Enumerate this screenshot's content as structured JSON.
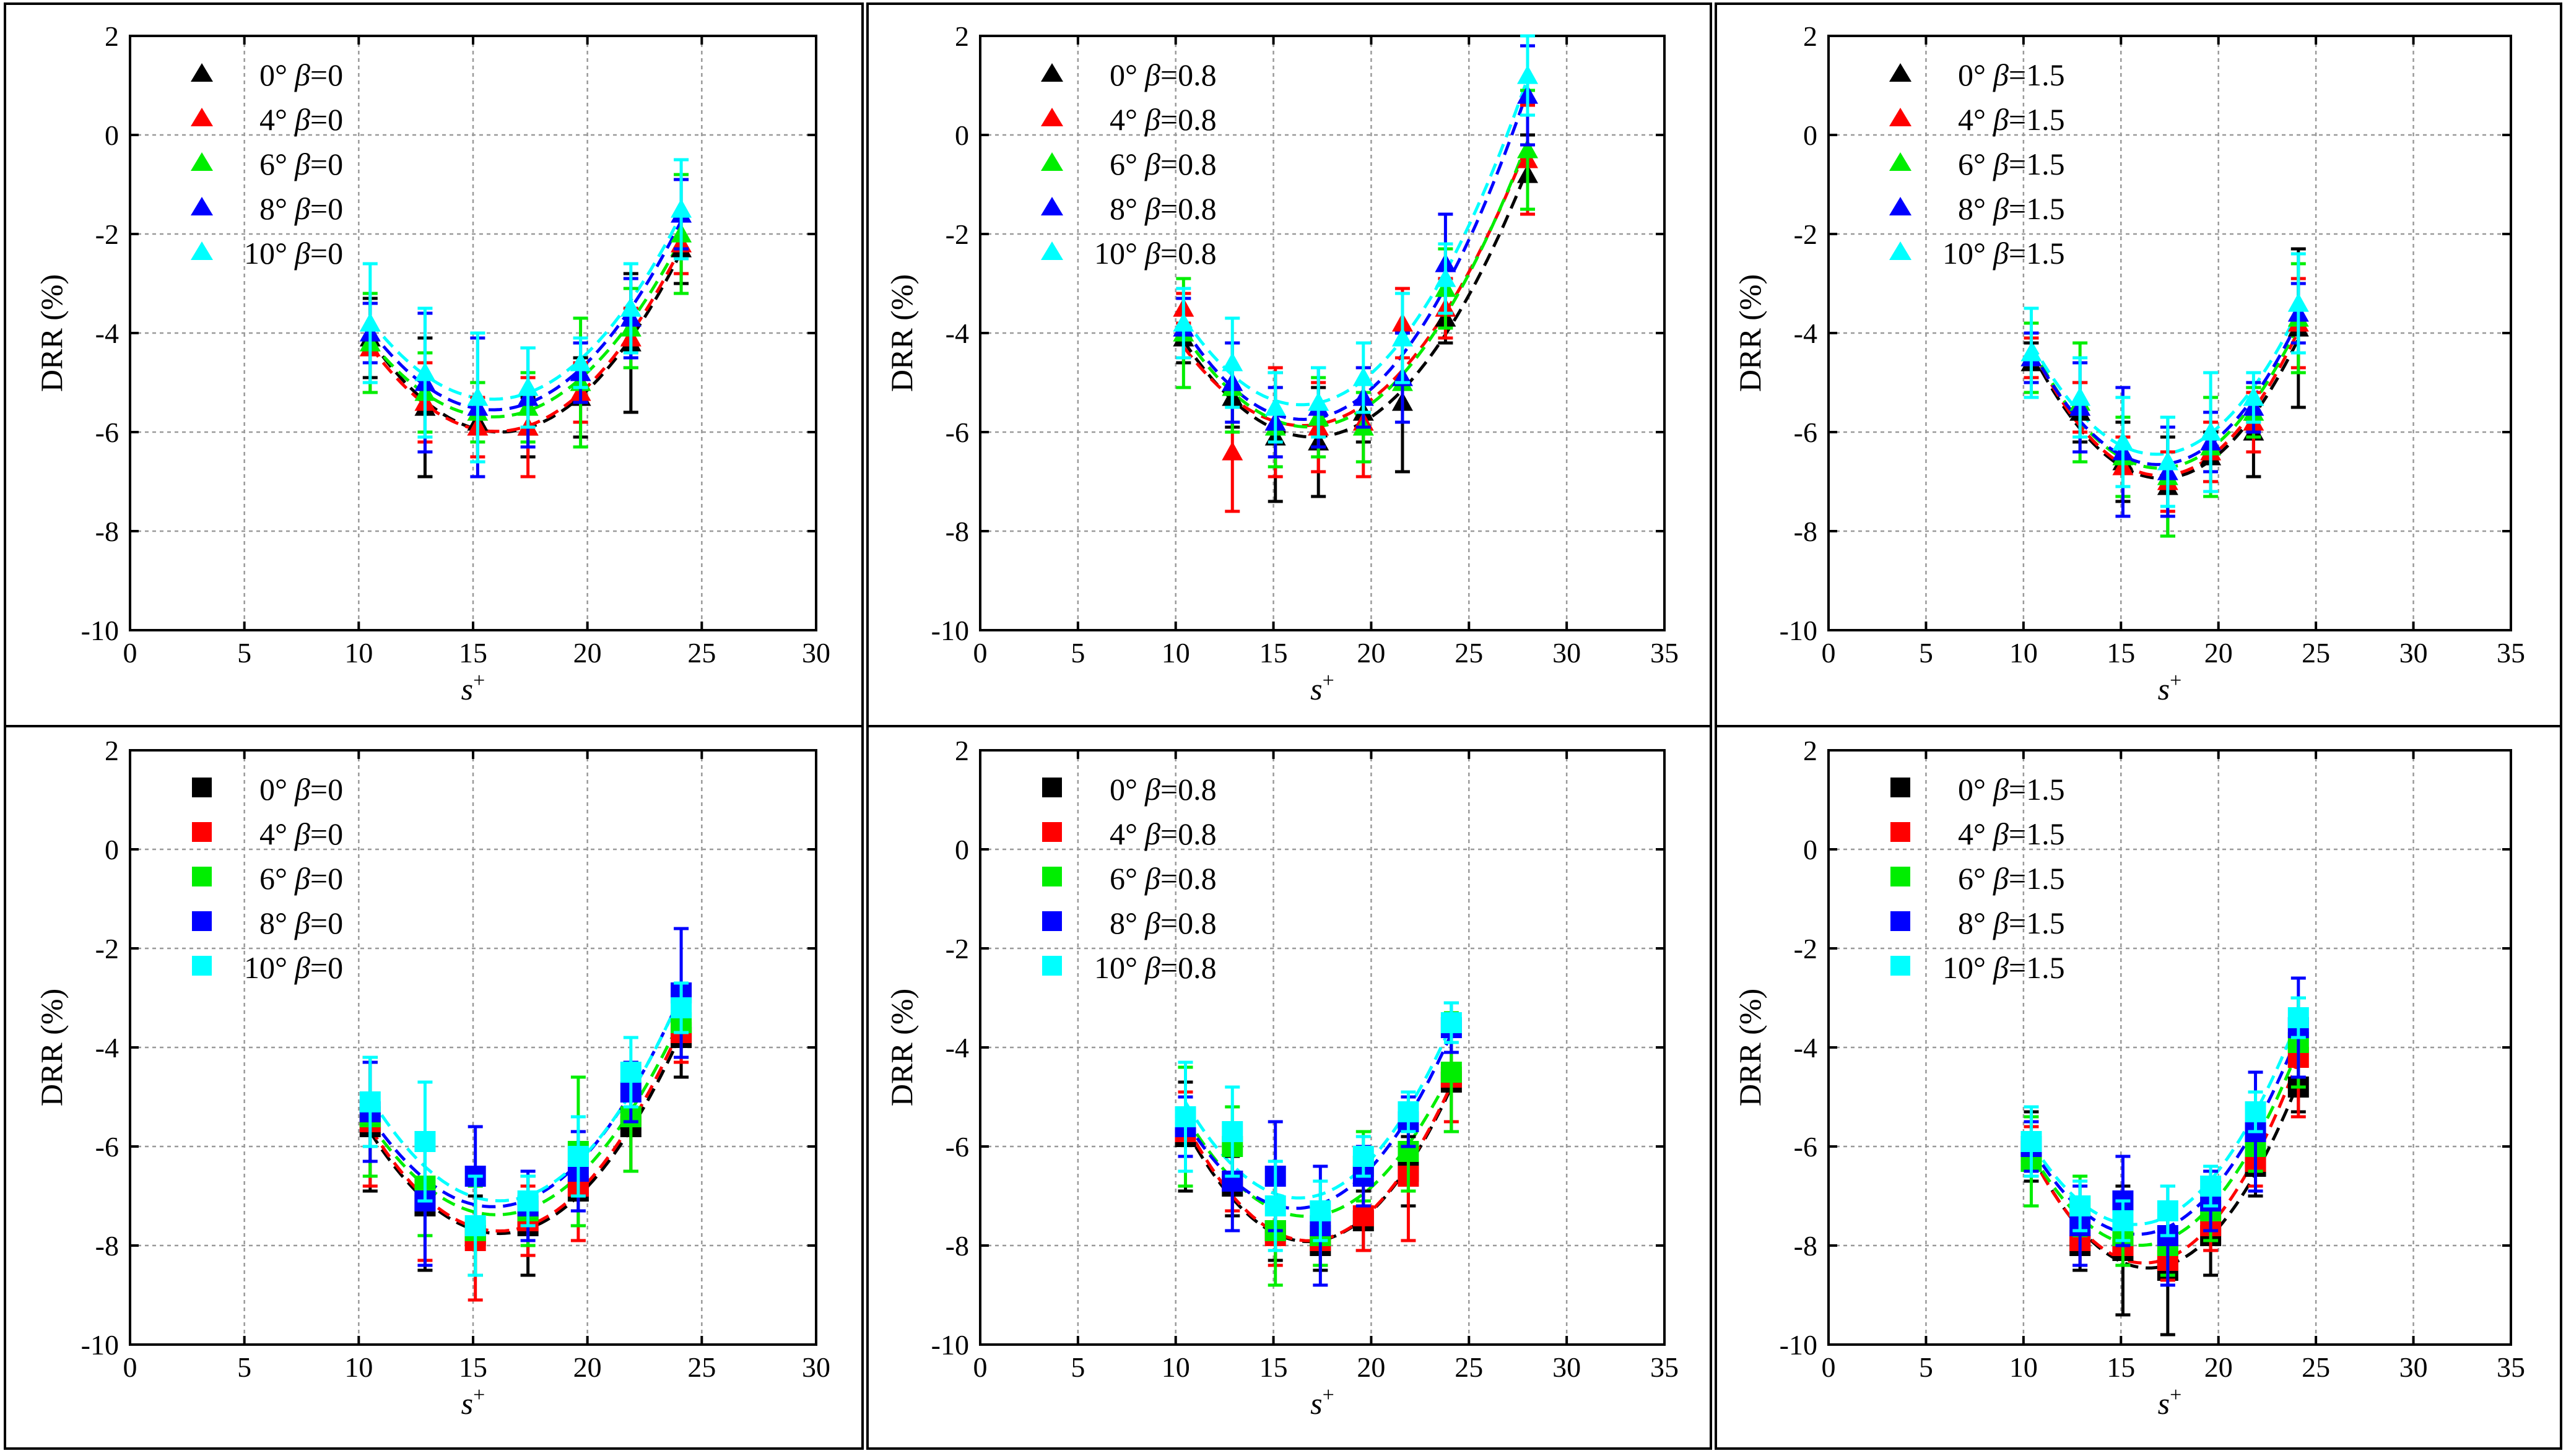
{
  "figure": {
    "colors": {
      "0": "#000000",
      "4": "#ff0000",
      "6": "#00ee00",
      "8": "#0000ff",
      "10": "#00ffff"
    },
    "legend_angles": [
      "0°",
      "4°",
      "6°",
      "8°",
      "10°"
    ],
    "legend_angle_values": [
      "0",
      "4",
      "6",
      "8",
      "10"
    ]
  },
  "chart_data": [
    {
      "id": "top-left",
      "type": "scatter",
      "marker": "triangle",
      "beta": "0",
      "xlabel": "s",
      "xlabel_sup": "+",
      "ylabel": "DRR (%)",
      "xlim": [
        0,
        30
      ],
      "xticks": [
        0,
        5,
        10,
        15,
        20,
        25,
        30
      ],
      "ylim": [
        -10,
        2
      ],
      "yticks": [
        -10,
        -8,
        -6,
        -4,
        -2,
        0,
        2
      ],
      "x": [
        10.5,
        12.9,
        15.2,
        17.4,
        19.7,
        21.9,
        24.1
      ],
      "series": [
        {
          "angle": "0",
          "name": "0° β=0",
          "values": [
            -4.1,
            -5.5,
            -5.8,
            -5.9,
            -5.3,
            -4.2,
            -2.3
          ],
          "errors": [
            0.8,
            1.4,
            0.8,
            0.6,
            0.8,
            1.4,
            0.7
          ]
        },
        {
          "angle": "4",
          "name": "4° β=0",
          "values": [
            -4.3,
            -5.4,
            -5.9,
            -5.9,
            -5.2,
            -4.1,
            -2.2
          ],
          "errors": [
            0.9,
            0.8,
            0.6,
            1.0,
            0.6,
            0.6,
            0.6
          ]
        },
        {
          "angle": "6",
          "name": "6° β=0",
          "values": [
            -4.2,
            -5.2,
            -5.6,
            -5.5,
            -5.0,
            -3.9,
            -2.0
          ],
          "errors": [
            1.0,
            0.8,
            0.6,
            0.7,
            1.3,
            0.8,
            1.2
          ]
        },
        {
          "angle": "8",
          "name": "8° β=0",
          "values": [
            -4.0,
            -5.0,
            -5.5,
            -5.3,
            -4.8,
            -3.7,
            -1.6
          ],
          "errors": [
            0.6,
            1.4,
            1.4,
            1.0,
            0.6,
            0.8,
            0.7
          ]
        },
        {
          "angle": "10",
          "name": "10° β=0",
          "values": [
            -3.8,
            -4.8,
            -5.3,
            -5.1,
            -4.6,
            -3.5,
            -1.5
          ],
          "errors": [
            1.2,
            1.3,
            1.3,
            0.8,
            0.5,
            0.9,
            1.0
          ]
        }
      ]
    },
    {
      "id": "top-middle",
      "type": "scatter",
      "marker": "triangle",
      "beta": "0.8",
      "xlabel": "s",
      "xlabel_sup": "+",
      "ylabel": "DRR (%)",
      "xlim": [
        0,
        35
      ],
      "xticks": [
        0,
        5,
        10,
        15,
        20,
        25,
        30,
        35
      ],
      "ylim": [
        -10,
        2
      ],
      "yticks": [
        -10,
        -8,
        -6,
        -4,
        -2,
        0,
        2
      ],
      "x": [
        10.4,
        12.9,
        15.1,
        17.3,
        19.6,
        21.6,
        23.8,
        28.0
      ],
      "series": [
        {
          "angle": "0",
          "name": "0° β=0.8",
          "values": [
            -4.1,
            -5.3,
            -6.1,
            -6.2,
            -5.6,
            -5.4,
            -3.7,
            -0.8
          ],
          "errors": [
            0.5,
            0.6,
            1.3,
            1.1,
            0.6,
            1.4,
            0.5,
            0.8
          ]
        },
        {
          "angle": "4",
          "name": "4° β=0.8",
          "values": [
            -3.5,
            -6.4,
            -5.8,
            -5.9,
            -5.8,
            -3.8,
            -3.5,
            -0.5
          ],
          "errors": [
            0.3,
            1.2,
            1.1,
            0.9,
            1.1,
            0.7,
            0.6,
            1.1
          ]
        },
        {
          "angle": "6",
          "name": "6° β=0.8",
          "values": [
            -4.0,
            -5.1,
            -5.9,
            -5.7,
            -5.9,
            -5.0,
            -3.1,
            -0.3
          ],
          "errors": [
            1.1,
            0.9,
            0.8,
            0.8,
            0.7,
            0.8,
            0.8,
            1.2
          ]
        },
        {
          "angle": "8",
          "name": "8° β=0.8",
          "values": [
            -3.9,
            -5.0,
            -5.8,
            -5.5,
            -5.3,
            -4.9,
            -2.6,
            0.8
          ],
          "errors": [
            0.6,
            0.8,
            0.7,
            0.8,
            0.6,
            0.9,
            1.0,
            1.0
          ]
        },
        {
          "angle": "10",
          "name": "10° β=0.8",
          "values": [
            -3.8,
            -4.6,
            -5.5,
            -5.4,
            -4.9,
            -4.1,
            -2.9,
            1.2
          ],
          "errors": [
            0.7,
            0.9,
            0.7,
            0.7,
            0.7,
            0.9,
            0.7,
            0.8
          ]
        }
      ]
    },
    {
      "id": "top-right",
      "type": "scatter",
      "marker": "triangle",
      "beta": "1.5",
      "xlabel": "s",
      "xlabel_sup": "+",
      "ylabel": "DRR (%)",
      "xlim": [
        0,
        35
      ],
      "xticks": [
        0,
        5,
        10,
        15,
        20,
        25,
        30,
        35
      ],
      "ylim": [
        -10,
        2
      ],
      "yticks": [
        -10,
        -8,
        -6,
        -4,
        -2,
        0,
        2
      ],
      "x": [
        10.4,
        12.9,
        15.1,
        17.4,
        19.6,
        21.8,
        24.1
      ],
      "series": [
        {
          "angle": "0",
          "name": "0° β=1.5",
          "values": [
            -4.6,
            -5.6,
            -6.6,
            -7.1,
            -6.5,
            -6.0,
            -3.9
          ],
          "errors": [
            0.4,
            0.6,
            0.8,
            1.0,
            0.5,
            0.9,
            1.6
          ]
        },
        {
          "angle": "4",
          "name": "4° β=1.5",
          "values": [
            -4.5,
            -5.5,
            -6.7,
            -7.0,
            -6.4,
            -5.8,
            -3.8
          ],
          "errors": [
            0.4,
            0.5,
            0.6,
            0.6,
            0.6,
            0.6,
            0.9
          ]
        },
        {
          "angle": "6",
          "name": "6° β=1.5",
          "values": [
            -4.5,
            -5.4,
            -6.5,
            -6.9,
            -6.3,
            -5.6,
            -3.7
          ],
          "errors": [
            0.7,
            1.2,
            0.8,
            1.2,
            1.0,
            0.5,
            1.1
          ]
        },
        {
          "angle": "8",
          "name": "8° β=1.5",
          "values": [
            -4.5,
            -5.5,
            -6.4,
            -6.8,
            -6.2,
            -5.5,
            -3.6
          ],
          "errors": [
            0.5,
            0.9,
            1.3,
            0.9,
            0.6,
            0.5,
            0.6
          ]
        },
        {
          "angle": "10",
          "name": "10° β=1.5",
          "values": [
            -4.4,
            -5.3,
            -6.2,
            -6.6,
            -6.0,
            -5.3,
            -3.4
          ],
          "errors": [
            0.9,
            0.8,
            0.9,
            0.9,
            1.2,
            0.5,
            1.0
          ]
        }
      ]
    },
    {
      "id": "bottom-left",
      "type": "scatter",
      "marker": "square",
      "beta": "0",
      "xlabel": "s",
      "xlabel_sup": "+",
      "ylabel": "DRR (%)",
      "xlim": [
        0,
        30
      ],
      "xticks": [
        0,
        5,
        10,
        15,
        20,
        25,
        30
      ],
      "ylim": [
        -10,
        2
      ],
      "yticks": [
        -10,
        -8,
        -6,
        -4,
        -2,
        0,
        2
      ],
      "x": [
        10.5,
        12.9,
        15.1,
        17.4,
        19.6,
        21.9,
        24.1
      ],
      "series": [
        {
          "angle": "0",
          "name": "0° β=0",
          "values": [
            -5.6,
            -7.2,
            -7.8,
            -7.6,
            -6.9,
            -5.6,
            -3.8
          ],
          "errors": [
            1.3,
            1.3,
            0.8,
            1.0,
            0.7,
            0.9,
            0.8
          ]
        },
        {
          "angle": "4",
          "name": "4° β=0",
          "values": [
            -5.5,
            -7.1,
            -7.9,
            -7.5,
            -6.8,
            -5.4,
            -3.7
          ],
          "errors": [
            1.3,
            1.2,
            1.2,
            0.7,
            1.1,
            1.1,
            0.6
          ]
        },
        {
          "angle": "6",
          "name": "6° β=0",
          "values": [
            -5.4,
            -6.8,
            -7.7,
            -7.3,
            -6.1,
            -5.4,
            -3.5
          ],
          "errors": [
            1.2,
            1.0,
            0.9,
            0.7,
            1.5,
            1.1,
            0.7
          ]
        },
        {
          "angle": "8",
          "name": "8° β=0",
          "values": [
            -5.3,
            -7.1,
            -6.6,
            -7.2,
            -6.5,
            -4.9,
            -2.9
          ],
          "errors": [
            1.0,
            1.3,
            1.0,
            0.7,
            0.8,
            0.6,
            1.3
          ]
        },
        {
          "angle": "10",
          "name": "10° β=0",
          "values": [
            -5.1,
            -5.9,
            -7.6,
            -7.1,
            -6.2,
            -4.5,
            -3.2
          ],
          "errors": [
            0.9,
            1.2,
            1.0,
            0.5,
            0.8,
            0.7,
            0.5
          ]
        }
      ]
    },
    {
      "id": "bottom-middle",
      "type": "scatter",
      "marker": "square",
      "beta": "0.8",
      "xlabel": "s",
      "xlabel_sup": "+",
      "ylabel": "DRR (%)",
      "xlim": [
        0,
        35
      ],
      "xticks": [
        0,
        5,
        10,
        15,
        20,
        25,
        30,
        35
      ],
      "ylim": [
        -10,
        2
      ],
      "yticks": [
        -10,
        -8,
        -6,
        -4,
        -2,
        0,
        2
      ],
      "x": [
        10.5,
        12.9,
        15.1,
        17.4,
        19.6,
        21.9,
        24.1
      ],
      "series": [
        {
          "angle": "0",
          "name": "0° β=0.8",
          "values": [
            -5.8,
            -6.8,
            -7.7,
            -8.0,
            -7.5,
            -6.5,
            -4.7
          ],
          "errors": [
            1.1,
            0.6,
            0.6,
            0.5,
            0.6,
            0.7,
            1.0
          ]
        },
        {
          "angle": "4",
          "name": "4° β=0.8",
          "values": [
            -5.7,
            -6.7,
            -7.8,
            -7.9,
            -7.4,
            -6.6,
            -4.6
          ],
          "errors": [
            0.8,
            0.6,
            0.6,
            0.5,
            0.7,
            1.3,
            0.9
          ]
        },
        {
          "angle": "6",
          "name": "6° β=0.8",
          "values": [
            -5.6,
            -6.0,
            -7.7,
            -7.8,
            -6.4,
            -6.1,
            -4.5
          ],
          "errors": [
            1.2,
            0.8,
            1.1,
            0.6,
            0.7,
            0.8,
            1.2
          ]
        },
        {
          "angle": "8",
          "name": "8° β=0.8",
          "values": [
            -5.6,
            -6.7,
            -6.6,
            -7.6,
            -6.6,
            -5.5,
            -3.6
          ],
          "errors": [
            0.6,
            1.0,
            1.1,
            1.2,
            0.6,
            0.5,
            0.5
          ]
        },
        {
          "angle": "10",
          "name": "10° β=0.8",
          "values": [
            -5.4,
            -5.7,
            -7.2,
            -7.3,
            -6.2,
            -5.3,
            -3.5
          ],
          "errors": [
            1.1,
            0.9,
            0.9,
            0.6,
            0.4,
            0.4,
            0.4
          ]
        }
      ]
    },
    {
      "id": "bottom-right",
      "type": "scatter",
      "marker": "square",
      "beta": "1.5",
      "xlabel": "s",
      "xlabel_sup": "+",
      "ylabel": "DRR (%)",
      "xlim": [
        0,
        35
      ],
      "xticks": [
        0,
        5,
        10,
        15,
        20,
        25,
        30,
        35
      ],
      "ylim": [
        -10,
        2
      ],
      "yticks": [
        -10,
        -8,
        -6,
        -4,
        -2,
        0,
        2
      ],
      "x": [
        10.4,
        12.9,
        15.1,
        17.4,
        19.6,
        21.9,
        24.1
      ],
      "series": [
        {
          "angle": "0",
          "name": "0° β=1.5",
          "values": [
            -6.0,
            -8.0,
            -8.1,
            -8.5,
            -7.8,
            -6.4,
            -4.8
          ],
          "errors": [
            0.7,
            0.5,
            1.3,
            1.3,
            0.8,
            0.6,
            0.5
          ]
        },
        {
          "angle": "4",
          "name": "4° β=1.5",
          "values": [
            -6.1,
            -7.9,
            -8.0,
            -8.3,
            -7.6,
            -6.3,
            -4.2
          ],
          "errors": [
            0.5,
            0.5,
            0.4,
            0.4,
            0.5,
            0.5,
            1.2
          ]
        },
        {
          "angle": "6",
          "name": "6° β=1.5",
          "values": [
            -6.3,
            -7.2,
            -7.8,
            -8.0,
            -7.3,
            -6.0,
            -3.9
          ],
          "errors": [
            0.9,
            0.6,
            0.6,
            0.6,
            0.6,
            0.5,
            0.9
          ]
        },
        {
          "angle": "8",
          "name": "8° β=1.5",
          "values": [
            -6.0,
            -7.6,
            -7.1,
            -7.8,
            -7.1,
            -5.7,
            -3.6
          ],
          "errors": [
            0.5,
            0.8,
            0.9,
            1.0,
            0.6,
            1.2,
            1.0
          ]
        },
        {
          "angle": "10",
          "name": "10° β=1.5",
          "values": [
            -5.9,
            -7.2,
            -7.5,
            -7.3,
            -6.8,
            -5.3,
            -3.4
          ],
          "errors": [
            0.7,
            0.5,
            0.4,
            0.5,
            0.4,
            0.4,
            0.4
          ]
        }
      ]
    }
  ]
}
